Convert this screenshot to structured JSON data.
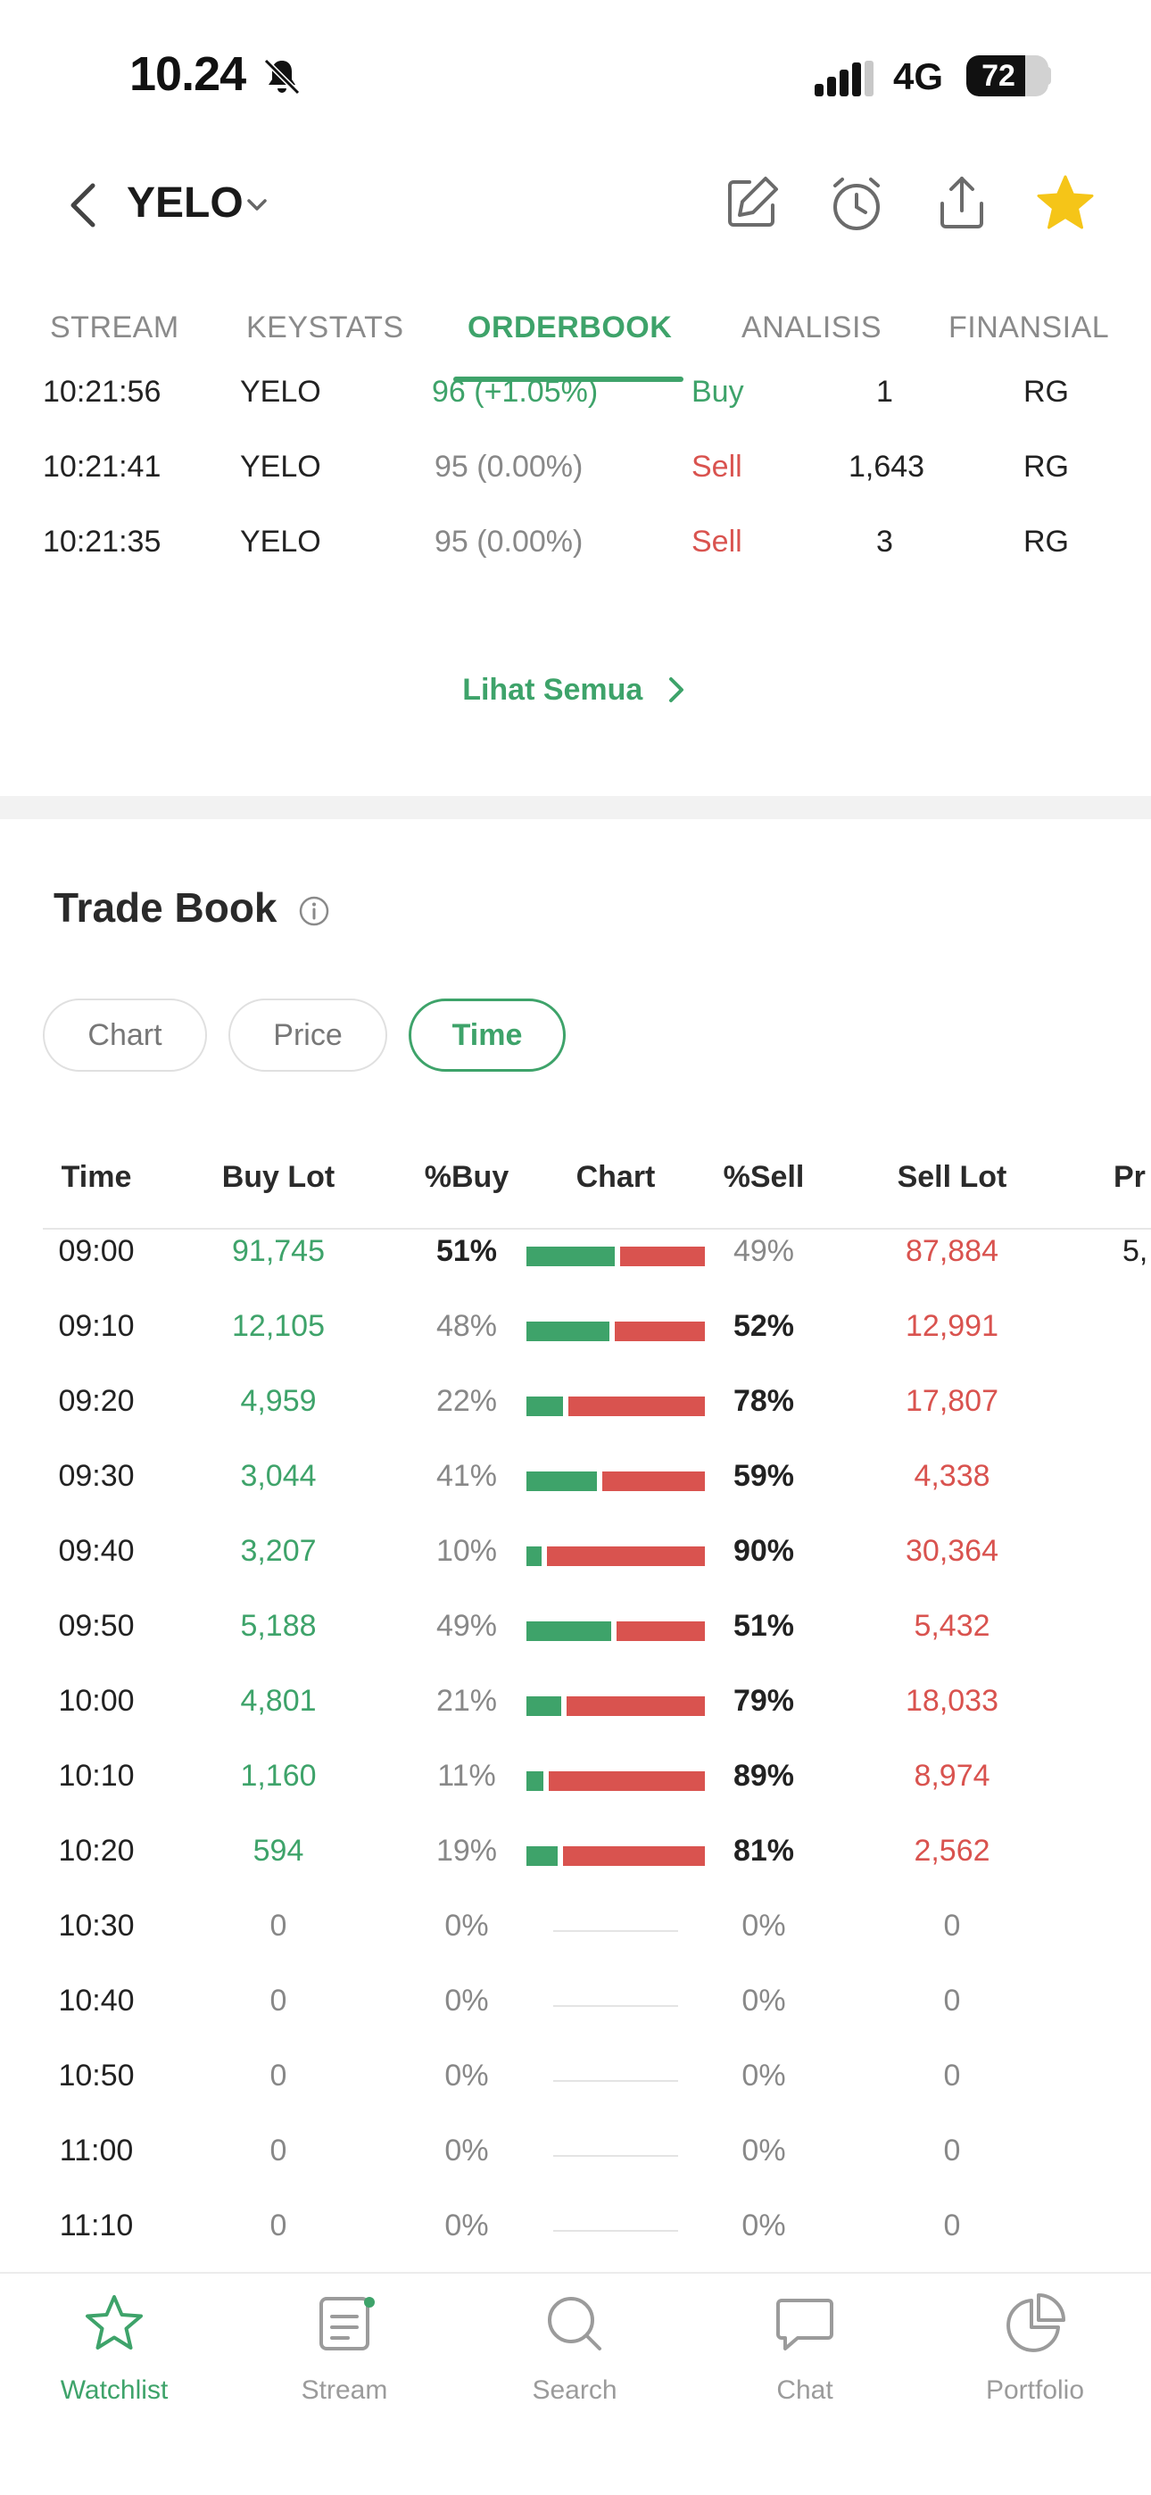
{
  "status_bar": {
    "time": "10.24",
    "network": "4G",
    "battery": "72",
    "battery_level": 0.72
  },
  "header": {
    "ticker": "YELO"
  },
  "tabs": [
    {
      "label": "STREAM",
      "active": false
    },
    {
      "label": "KEYSTATS",
      "active": false
    },
    {
      "label": "ORDERBOOK",
      "active": true
    },
    {
      "label": "ANALISIS",
      "active": false
    },
    {
      "label": "FINANSIAL",
      "active": false
    }
  ],
  "trades": [
    {
      "time": "10:21:56",
      "code": "YELO",
      "price": "96 (+1.05%)",
      "side": "Buy",
      "lot": "1",
      "board": "RG"
    },
    {
      "time": "10:21:41",
      "code": "YELO",
      "price": "95 (0.00%)",
      "side": "Sell",
      "lot": "1,643",
      "board": "RG"
    },
    {
      "time": "10:21:35",
      "code": "YELO",
      "price": "95 (0.00%)",
      "side": "Sell",
      "lot": "3",
      "board": "RG"
    }
  ],
  "see_all_label": "Lihat Semua",
  "trade_book": {
    "title": "Trade Book",
    "segments": [
      {
        "label": "Chart",
        "active": false
      },
      {
        "label": "Price",
        "active": false
      },
      {
        "label": "Time",
        "active": true
      }
    ],
    "columns": {
      "time": "Time",
      "buy_lot": "Buy Lot",
      "buy_pct": "%Buy",
      "chart": "Chart",
      "sell_pct": "%Sell",
      "sell_lot": "Sell Lot",
      "extra": "Pr"
    },
    "rows": [
      {
        "time": "09:00",
        "buy_lot": "91,745",
        "buy_pct": "51%",
        "sell_pct": "49%",
        "sell_lot": "87,884",
        "extra": "5,",
        "buy_frac": 0.51
      },
      {
        "time": "09:10",
        "buy_lot": "12,105",
        "buy_pct": "48%",
        "sell_pct": "52%",
        "sell_lot": "12,991",
        "extra": "",
        "buy_frac": 0.48
      },
      {
        "time": "09:20",
        "buy_lot": "4,959",
        "buy_pct": "22%",
        "sell_pct": "78%",
        "sell_lot": "17,807",
        "extra": "",
        "buy_frac": 0.22
      },
      {
        "time": "09:30",
        "buy_lot": "3,044",
        "buy_pct": "41%",
        "sell_pct": "59%",
        "sell_lot": "4,338",
        "extra": "",
        "buy_frac": 0.41
      },
      {
        "time": "09:40",
        "buy_lot": "3,207",
        "buy_pct": "10%",
        "sell_pct": "90%",
        "sell_lot": "30,364",
        "extra": "",
        "buy_frac": 0.1
      },
      {
        "time": "09:50",
        "buy_lot": "5,188",
        "buy_pct": "49%",
        "sell_pct": "51%",
        "sell_lot": "5,432",
        "extra": "",
        "buy_frac": 0.49
      },
      {
        "time": "10:00",
        "buy_lot": "4,801",
        "buy_pct": "21%",
        "sell_pct": "79%",
        "sell_lot": "18,033",
        "extra": "",
        "buy_frac": 0.21
      },
      {
        "time": "10:10",
        "buy_lot": "1,160",
        "buy_pct": "11%",
        "sell_pct": "89%",
        "sell_lot": "8,974",
        "extra": "",
        "buy_frac": 0.11
      },
      {
        "time": "10:20",
        "buy_lot": "594",
        "buy_pct": "19%",
        "sell_pct": "81%",
        "sell_lot": "2,562",
        "extra": "",
        "buy_frac": 0.19
      },
      {
        "time": "10:30",
        "buy_lot": "0",
        "buy_pct": "0%",
        "sell_pct": "0%",
        "sell_lot": "0",
        "extra": "",
        "buy_frac": null
      },
      {
        "time": "10:40",
        "buy_lot": "0",
        "buy_pct": "0%",
        "sell_pct": "0%",
        "sell_lot": "0",
        "extra": "",
        "buy_frac": null
      },
      {
        "time": "10:50",
        "buy_lot": "0",
        "buy_pct": "0%",
        "sell_pct": "0%",
        "sell_lot": "0",
        "extra": "",
        "buy_frac": null
      },
      {
        "time": "11:00",
        "buy_lot": "0",
        "buy_pct": "0%",
        "sell_pct": "0%",
        "sell_lot": "0",
        "extra": "",
        "buy_frac": null
      },
      {
        "time": "11:10",
        "buy_lot": "0",
        "buy_pct": "0%",
        "sell_pct": "0%",
        "sell_lot": "0",
        "extra": "",
        "buy_frac": null
      }
    ]
  },
  "bottom_nav": [
    {
      "label": "Watchlist",
      "icon": "star-icon",
      "active": true
    },
    {
      "label": "Stream",
      "icon": "stream-icon",
      "active": false
    },
    {
      "label": "Search",
      "icon": "search-icon",
      "active": false
    },
    {
      "label": "Chat",
      "icon": "chat-icon",
      "active": false
    },
    {
      "label": "Portfolio",
      "icon": "portfolio-icon",
      "active": false
    }
  ],
  "colors": {
    "accent": "#3ea36a",
    "buy": "#3ea36a",
    "sell": "#d9534f",
    "star": "#f5c518"
  }
}
